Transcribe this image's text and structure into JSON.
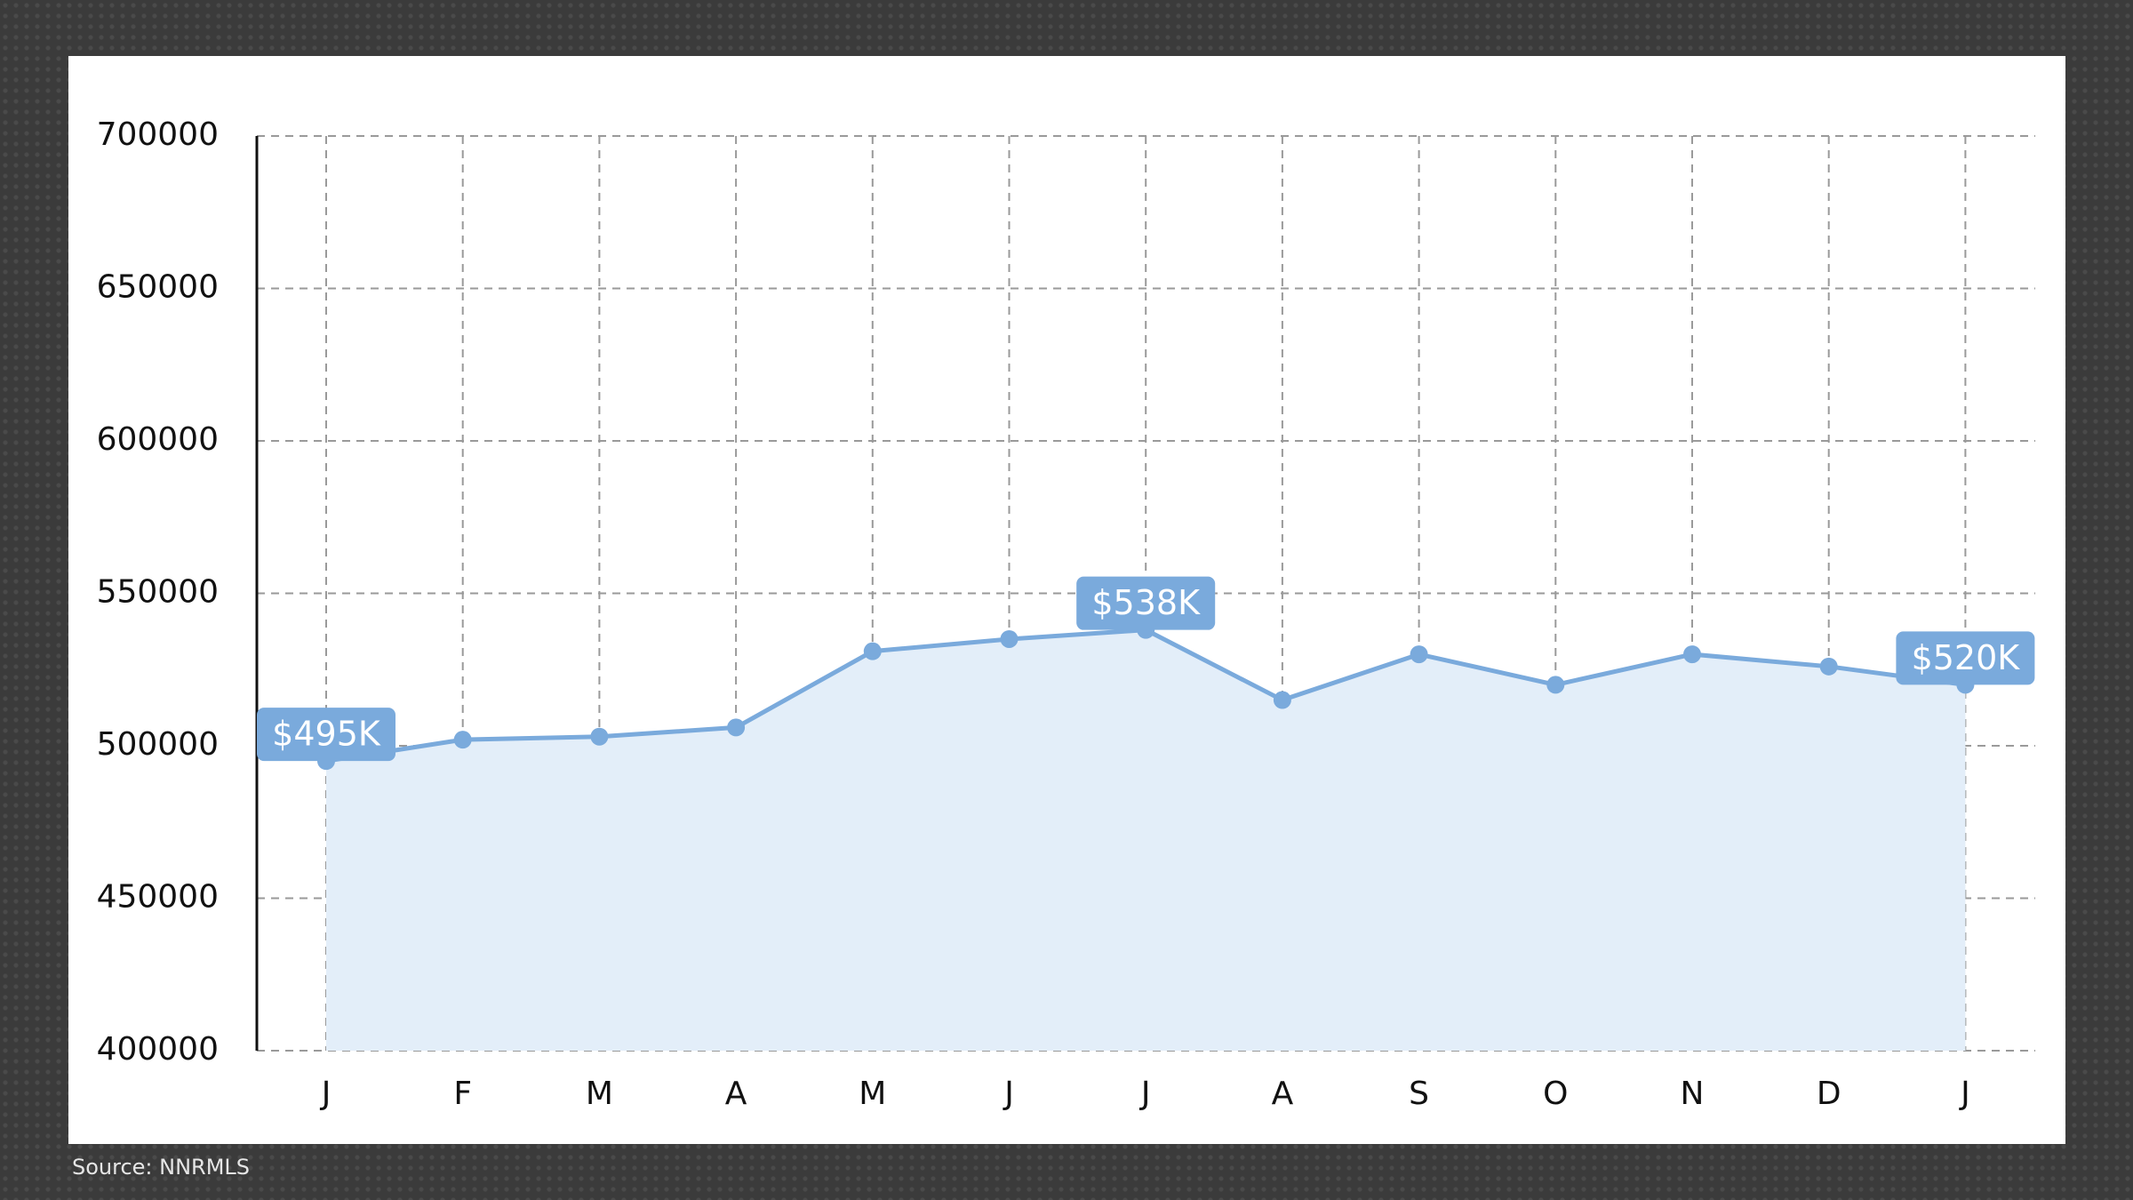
{
  "chart_data": {
    "type": "line",
    "categories": [
      "J",
      "F",
      "M",
      "A",
      "M",
      "J",
      "J",
      "A",
      "S",
      "O",
      "N",
      "D",
      "J"
    ],
    "values": [
      495000,
      502000,
      503000,
      506000,
      531000,
      535000,
      538000,
      515000,
      530000,
      520000,
      530000,
      526000,
      520000
    ],
    "value_labels": [
      "$495K",
      null,
      null,
      null,
      null,
      null,
      "$538K",
      null,
      null,
      null,
      null,
      null,
      "$520K"
    ],
    "color": "#7aaadc",
    "area_color": "#e3eef9",
    "ylim": [
      400000,
      700000
    ],
    "yticks": [
      400000,
      450000,
      500000,
      550000,
      600000,
      650000,
      700000
    ],
    "grid": true,
    "source": "Source: NNRMLS"
  }
}
